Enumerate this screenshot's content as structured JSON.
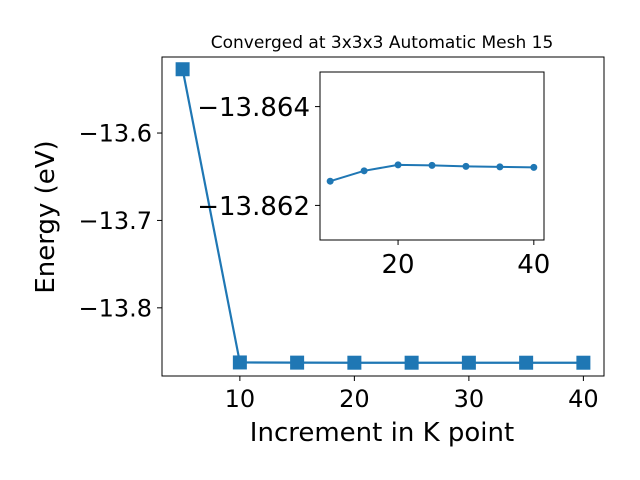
{
  "chart_data": [
    {
      "type": "line",
      "title": "Converged at 3x3x3 Automatic Mesh 15",
      "xlabel": "Increment in K point",
      "ylabel": "Energy (eV)",
      "x": [
        5,
        10,
        15,
        20,
        25,
        30,
        35,
        40
      ],
      "series": [
        {
          "values": [
            -13.527,
            -13.8625,
            -13.8627,
            -13.8628,
            -13.8628,
            -13.8628,
            -13.8628,
            -13.8628
          ]
        }
      ],
      "xlim": [
        3.2,
        41.8
      ],
      "ylim": [
        -13.878,
        -13.513
      ],
      "xticks": [
        10,
        20,
        30,
        40
      ],
      "xtick_labels": [
        "10",
        "20",
        "30",
        "40"
      ],
      "yticks": [
        -13.6,
        -13.7,
        -13.8
      ],
      "ytick_labels": [
        "−13.6",
        "−13.7",
        "−13.8"
      ],
      "marker": "square",
      "color": "#1f77b4",
      "grid": false
    },
    {
      "type": "line",
      "inset": true,
      "x": [
        10,
        15,
        20,
        25,
        30,
        35,
        40
      ],
      "series": [
        {
          "values": [
            -13.86249,
            -13.8627,
            -13.86282,
            -13.86281,
            -13.86279,
            -13.86278,
            -13.86277
          ]
        }
      ],
      "xlim": [
        8.5,
        41.5
      ],
      "ylim": [
        -13.8613,
        -13.8647
      ],
      "xticks": [
        20,
        40
      ],
      "xtick_labels": [
        "20",
        "40"
      ],
      "yticks": [
        -13.864,
        -13.862
      ],
      "ytick_labels": [
        "−13.864",
        "−13.862"
      ],
      "marker": "circle",
      "color": "#1f77b4",
      "grid": false
    }
  ]
}
